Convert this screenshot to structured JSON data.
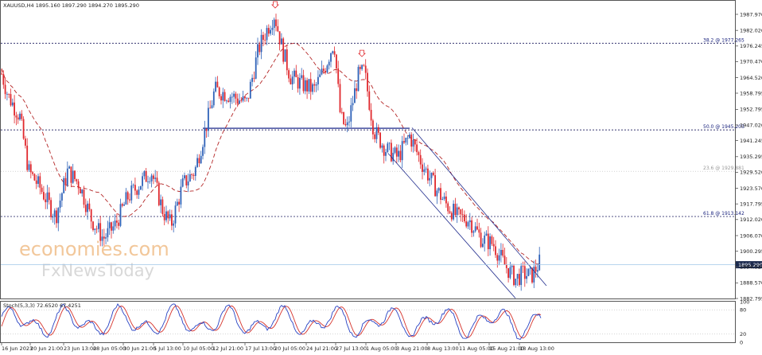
{
  "header": {
    "symbol_info": "XAUUSD,H4  1895.160 1897.290 1894.270 1895.290"
  },
  "stoch_header": "Stoch(5,3,3) 72.6520 67.4251",
  "watermark": {
    "line1": "economies.com",
    "line2": "FxNewsToday"
  },
  "colors": {
    "bull": "#2f62b8",
    "bear": "#e0282d",
    "ma": "#b42626",
    "channel": "#1e2a8c",
    "stoch_main": "#2742c4",
    "stoch_signal": "#d6322a",
    "level": "#1a1a5e",
    "arrow": "#e0282d"
  },
  "chart_data": {
    "type": "candlestick",
    "symbol": "XAUUSD",
    "timeframe": "H4",
    "ohlc": {
      "open": 1895.16,
      "high": 1897.29,
      "low": 1894.27,
      "close": 1895.29
    },
    "current_price": "1895.290",
    "y_axis_ticks": [
      "1987.970",
      "1982.020",
      "1976.245",
      "1970.470",
      "1964.520",
      "1958.795",
      "1952.795",
      "1947.020",
      "1941.245",
      "1935.295",
      "1929.520",
      "1923.570",
      "1917.795",
      "1912.020",
      "1906.070",
      "1900.295",
      "1894.520",
      "1888.570",
      "1882.795"
    ],
    "x_axis_ticks": [
      "16 Jun 2023",
      "20 Jun 21:00",
      "23 Jun 13:00",
      "28 Jun 05:00",
      "30 Jun 21:00",
      "5 Jul 13:00",
      "10 Jul 05:00",
      "12 Jul 21:00",
      "17 Jul 13:00",
      "20 Jul 05:00",
      "24 Jul 21:00",
      "27 Jul 13:00",
      "1 Aug 05:00",
      "3 Aug 21:00",
      "8 Aug 13:00",
      "11 Aug 05:00",
      "15 Aug 21:00",
      "18 Aug 13:00"
    ],
    "fib_levels": [
      {
        "label": "38.2 @ 1977.265",
        "price": 1977.265,
        "style": "dashed"
      },
      {
        "label": "50.0 @ 1945.203",
        "price": 1945.203,
        "style": "dashed"
      },
      {
        "label": "23.6 @ 1929.881",
        "price": 1929.881,
        "style": "faint"
      },
      {
        "label": "61.8 @ 1913.142",
        "price": 1913.142,
        "style": "dashed"
      }
    ],
    "horizontal_support": {
      "price": 1945.8,
      "from": "12 Jul 21:00",
      "to": "3 Aug 21:00"
    },
    "fractal_arrows": [
      {
        "price": 1991.5
      },
      {
        "price": 1973.5
      }
    ],
    "moving_average": {
      "style": "dashed"
    },
    "stochastic": {
      "params": "5,3,3",
      "main": 72.652,
      "signal": 67.4251,
      "levels": [
        "100",
        "80",
        "20",
        "0"
      ]
    }
  }
}
